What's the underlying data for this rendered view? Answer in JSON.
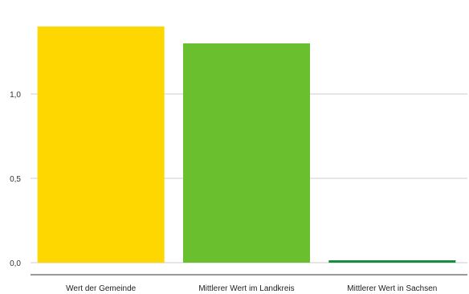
{
  "chart_data": {
    "type": "bar",
    "categories": [
      "Wert der Gemeinde",
      "Mittlerer Wert im Landkreis",
      "Mittlerer Wert in Sachsen"
    ],
    "values": [
      1.4,
      1.3,
      0.01
    ],
    "colors": [
      "#ffd700",
      "#6abf2e",
      "#1a8c3f"
    ],
    "y_ticks": [
      "0,0",
      "0,5",
      "1,0"
    ],
    "ylim": [
      0,
      1.4
    ],
    "grid": true,
    "gridline_color": "#cccccc",
    "axis_color": "#333333",
    "title": "",
    "xlabel": "",
    "ylabel": ""
  }
}
